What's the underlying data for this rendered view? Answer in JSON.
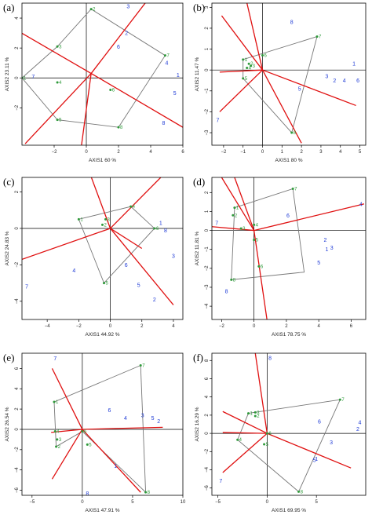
{
  "colors": {
    "hull": "#777777",
    "axes": "#e01010",
    "group_a": "#2e9a3a",
    "group_b": "#1f3bd6"
  },
  "chart_data": [
    {
      "type": "scatter",
      "panel": "(a)",
      "xlabel": "AXIS1 60 %",
      "ylabel": "AXIS2 23.11 %",
      "xlim": [
        -4,
        6
      ],
      "ylim": [
        -4.5,
        5
      ],
      "xticks": [
        -2,
        0,
        2,
        4,
        6
      ],
      "yticks": [
        -2,
        0,
        2,
        4
      ],
      "hull": [
        [
          0.3,
          4.6
        ],
        [
          4.9,
          1.5
        ],
        [
          2.0,
          -3.3
        ],
        [
          -1.8,
          -2.8
        ],
        [
          -4.0,
          0
        ],
        [
          -1.8,
          2.1
        ]
      ],
      "green_points": [
        {
          "label": "1",
          "x": -4.0,
          "y": 0
        },
        {
          "label": "2",
          "x": 0.3,
          "y": 4.6
        },
        {
          "label": "3",
          "x": -1.8,
          "y": 2.1
        },
        {
          "label": "4",
          "x": -1.8,
          "y": -0.3
        },
        {
          "label": "5",
          "x": -1.8,
          "y": -2.8
        },
        {
          "label": "6",
          "x": 1.5,
          "y": -0.8
        },
        {
          "label": "7",
          "x": 4.9,
          "y": 1.5
        },
        {
          "label": "8",
          "x": 2.0,
          "y": -3.3
        }
      ],
      "blue_points": [
        {
          "label": "1",
          "x": 5.7,
          "y": 0.2
        },
        {
          "label": "2",
          "x": 2.5,
          "y": 3.0
        },
        {
          "label": "3",
          "x": 2.6,
          "y": 4.8
        },
        {
          "label": "4",
          "x": 5.0,
          "y": 1.0
        },
        {
          "label": "5",
          "x": 5.5,
          "y": -1.0
        },
        {
          "label": "6",
          "x": 2.0,
          "y": 2.1
        },
        {
          "label": "7",
          "x": -3.3,
          "y": 0.1
        },
        {
          "label": "8",
          "x": 4.8,
          "y": -3.0
        }
      ],
      "axis_lines": [
        [
          [
            -4.5,
            3.3
          ],
          [
            0.3,
            0.3
          ]
        ],
        [
          [
            -3.8,
            -4.4
          ],
          [
            0.3,
            0.3
          ]
        ],
        [
          [
            0.3,
            0.3
          ],
          [
            3.8,
            5.2
          ]
        ],
        [
          [
            0.3,
            0.3
          ],
          [
            6.0,
            -3.3
          ]
        ],
        [
          [
            0.3,
            0.3
          ],
          [
            -0.3,
            -4.5
          ]
        ]
      ]
    },
    {
      "type": "scatter",
      "panel": "(b)",
      "xlabel": "AXIS1 80 %",
      "ylabel": "AXIS2 11.47 %",
      "xlim": [
        -2.6,
        5.3
      ],
      "ylim": [
        -3.6,
        3.2
      ],
      "xticks": [
        -2,
        -1,
        0,
        1,
        2,
        3,
        4,
        5
      ],
      "yticks": [
        -3,
        -2,
        -1,
        0,
        1,
        2,
        3
      ],
      "hull": [
        [
          2.8,
          1.6
        ],
        [
          1.5,
          -3.0
        ],
        [
          -1.0,
          -0.4
        ],
        [
          -1.0,
          0.5
        ]
      ],
      "green_points": [
        {
          "label": "1",
          "x": -1.0,
          "y": 0.5
        },
        {
          "label": "2",
          "x": -0.7,
          "y": 0.3
        },
        {
          "label": "3",
          "x": -0.6,
          "y": 0.2
        },
        {
          "label": "4",
          "x": -0.8,
          "y": 0.1
        },
        {
          "label": "5",
          "x": -1.0,
          "y": -0.4
        },
        {
          "label": "6",
          "x": 0.0,
          "y": 0.7
        },
        {
          "label": "7",
          "x": 2.8,
          "y": 1.6
        },
        {
          "label": "8",
          "x": 1.5,
          "y": -3.0
        }
      ],
      "blue_points": [
        {
          "label": "1",
          "x": 4.7,
          "y": 0.3
        },
        {
          "label": "2",
          "x": 3.7,
          "y": -0.5
        },
        {
          "label": "3",
          "x": 3.3,
          "y": -0.3
        },
        {
          "label": "4",
          "x": 4.2,
          "y": -0.5
        },
        {
          "label": "5",
          "x": 1.9,
          "y": -0.9
        },
        {
          "label": "6",
          "x": 4.9,
          "y": -0.5
        },
        {
          "label": "7",
          "x": -2.3,
          "y": -2.4
        },
        {
          "label": "8",
          "x": 1.5,
          "y": 2.3
        }
      ],
      "axis_lines": [
        [
          [
            0,
            0
          ],
          [
            -0.8,
            3.2
          ]
        ],
        [
          [
            0,
            0
          ],
          [
            -2.1,
            2.6
          ]
        ],
        [
          [
            0,
            0
          ],
          [
            -2.2,
            -0.1
          ]
        ],
        [
          [
            0,
            0
          ],
          [
            -2.2,
            -2.0
          ]
        ],
        [
          [
            0,
            0
          ],
          [
            2.0,
            -3.5
          ]
        ],
        [
          [
            0,
            0
          ],
          [
            4.8,
            -1.7
          ]
        ]
      ]
    },
    {
      "type": "scatter",
      "panel": "(c)",
      "xlabel": "AXIS1 44.92 %",
      "ylabel": "AXIS2 24.83 %",
      "xlim": [
        -5.6,
        4.6
      ],
      "ylim": [
        -5,
        2.8
      ],
      "xticks": [
        -4,
        -2,
        0,
        2,
        4
      ],
      "yticks": [
        -4,
        -2,
        0,
        2
      ],
      "hull": [
        [
          1.3,
          1.2
        ],
        [
          2.8,
          0
        ],
        [
          -0.4,
          -3.0
        ],
        [
          -2.0,
          0.5
        ]
      ],
      "green_points": [
        {
          "label": "1",
          "x": -2.0,
          "y": 0.5
        },
        {
          "label": "2",
          "x": -0.5,
          "y": 0.2
        },
        {
          "label": "3",
          "x": -0.3,
          "y": 0.5
        },
        {
          "label": "4",
          "x": 1.3,
          "y": 1.2
        },
        {
          "label": "5",
          "x": -0.4,
          "y": -3.0
        },
        {
          "label": "6",
          "x": 2.8,
          "y": 0
        }
      ],
      "blue_points": [
        {
          "label": "1",
          "x": 3.2,
          "y": 0.3
        },
        {
          "label": "2",
          "x": 2.8,
          "y": -3.9
        },
        {
          "label": "3",
          "x": 4.0,
          "y": -1.5
        },
        {
          "label": "4",
          "x": -2.3,
          "y": -2.3
        },
        {
          "label": "5",
          "x": 1.8,
          "y": -3.1
        },
        {
          "label": "6",
          "x": 1.0,
          "y": -2.0
        },
        {
          "label": "7",
          "x": -5.3,
          "y": -3.2
        },
        {
          "label": "8",
          "x": 3.5,
          "y": -0.1
        }
      ],
      "axis_lines": [
        [
          [
            0,
            0
          ],
          [
            -1.2,
            2.8
          ]
        ],
        [
          [
            0,
            0
          ],
          [
            3.2,
            2.8
          ]
        ],
        [
          [
            0,
            0
          ],
          [
            -5.6,
            -1.7
          ]
        ],
        [
          [
            0,
            0
          ],
          [
            2.0,
            -1.1
          ]
        ],
        [
          [
            0,
            0
          ],
          [
            4.0,
            -4.2
          ]
        ]
      ]
    },
    {
      "type": "scatter",
      "panel": "(d)",
      "xlabel": "AXIS1 78.75 %",
      "ylabel": "AXIS2 11.81 %",
      "xlim": [
        -2.6,
        6.9
      ],
      "ylim": [
        -4.7,
        2.8
      ],
      "xticks": [
        -2,
        0,
        2,
        4,
        6
      ],
      "yticks": [
        -4,
        -3,
        -2,
        -1,
        0,
        1,
        2
      ],
      "hull": [
        [
          2.4,
          2.2
        ],
        [
          3.1,
          -2.2
        ],
        [
          -1.4,
          -2.6
        ],
        [
          -1.2,
          1.2
        ]
      ],
      "green_points": [
        {
          "label": "1",
          "x": -1.2,
          "y": 1.2
        },
        {
          "label": "2",
          "x": -1.3,
          "y": 0.8
        },
        {
          "label": "3",
          "x": -0.8,
          "y": 0.1
        },
        {
          "label": "4",
          "x": 0.0,
          "y": 0.3
        },
        {
          "label": "5",
          "x": 0.0,
          "y": -0.5
        },
        {
          "label": "6",
          "x": 0.3,
          "y": -1.9
        },
        {
          "label": "7",
          "x": 2.4,
          "y": 2.2
        },
        {
          "label": "8",
          "x": -1.4,
          "y": -2.6
        }
      ],
      "blue_points": [
        {
          "label": "1",
          "x": 4.5,
          "y": -1.0
        },
        {
          "label": "2",
          "x": 4.4,
          "y": -0.5
        },
        {
          "label": "3",
          "x": 4.8,
          "y": -0.9
        },
        {
          "label": "4",
          "x": 6.6,
          "y": 1.4
        },
        {
          "label": "5",
          "x": 4.0,
          "y": -1.7
        },
        {
          "label": "6",
          "x": 2.1,
          "y": 0.8
        },
        {
          "label": "7",
          "x": -2.3,
          "y": 0.4
        },
        {
          "label": "8",
          "x": -1.7,
          "y": -3.2
        }
      ],
      "axis_lines": [
        [
          [
            0,
            0
          ],
          [
            -1.2,
            2.8
          ]
        ],
        [
          [
            0,
            0
          ],
          [
            -2.0,
            2.8
          ]
        ],
        [
          [
            0,
            0
          ],
          [
            -2.6,
            0.2
          ]
        ],
        [
          [
            0,
            0
          ],
          [
            6.8,
            1.4
          ]
        ],
        [
          [
            0,
            0
          ],
          [
            0.8,
            -4.7
          ]
        ]
      ]
    },
    {
      "type": "scatter",
      "panel": "(e)",
      "xlabel": "AXIS1 47.91 %",
      "ylabel": "AXIS2 26.54 %",
      "xlim": [
        -6,
        10
      ],
      "ylim": [
        -6.5,
        7.5
      ],
      "xticks": [
        -5,
        0,
        5,
        10
      ],
      "yticks": [
        -6,
        -4,
        -2,
        0,
        2,
        4,
        6
      ],
      "hull": [
        [
          5.8,
          6.3
        ],
        [
          6.3,
          -6.2
        ],
        [
          0,
          -0.2
        ],
        [
          -2.6,
          -1.7
        ],
        [
          -2.8,
          2.7
        ]
      ],
      "green_points": [
        {
          "label": "1",
          "x": -2.8,
          "y": 2.7
        },
        {
          "label": "2",
          "x": -2.6,
          "y": -1.7
        },
        {
          "label": "3",
          "x": -2.5,
          "y": -1.0
        },
        {
          "label": "4",
          "x": -2.7,
          "y": -0.2
        },
        {
          "label": "5",
          "x": 0.5,
          "y": -1.5
        },
        {
          "label": "6",
          "x": 0,
          "y": -0.2
        },
        {
          "label": "7",
          "x": 5.8,
          "y": 6.3
        },
        {
          "label": "8",
          "x": 6.3,
          "y": -6.2
        }
      ],
      "blue_points": [
        {
          "label": "1",
          "x": 3.3,
          "y": -3.6
        },
        {
          "label": "2",
          "x": 7.6,
          "y": 0.8
        },
        {
          "label": "3",
          "x": 6.0,
          "y": 1.4
        },
        {
          "label": "4",
          "x": 4.3,
          "y": 1.1
        },
        {
          "label": "5",
          "x": 7.0,
          "y": 1.1
        },
        {
          "label": "6",
          "x": 2.7,
          "y": 1.9
        },
        {
          "label": "7",
          "x": -2.7,
          "y": 7.0
        },
        {
          "label": "8",
          "x": 0.5,
          "y": -6.3
        }
      ],
      "axis_lines": [
        [
          [
            0,
            0
          ],
          [
            -3.0,
            6.0
          ]
        ],
        [
          [
            0,
            0
          ],
          [
            -3.0,
            -4.9
          ]
        ],
        [
          [
            0,
            0
          ],
          [
            -3.1,
            -0.3
          ]
        ],
        [
          [
            0,
            0
          ],
          [
            8.0,
            0.2
          ]
        ],
        [
          [
            0,
            0
          ],
          [
            5.8,
            -6.2
          ]
        ]
      ]
    },
    {
      "type": "scatter",
      "panel": "(f)",
      "xlabel": "AXIS1 69.95 %",
      "ylabel": "AXIS2 16.29 %",
      "xlim": [
        -5.6,
        10
      ],
      "ylim": [
        -6.8,
        8.8
      ],
      "xticks": [
        -5,
        0,
        5
      ],
      "yticks": [
        -6,
        -4,
        -2,
        0,
        2,
        4,
        6,
        8
      ],
      "hull": [
        [
          7.4,
          3.7
        ],
        [
          3.2,
          -6.4
        ],
        [
          -3.0,
          -0.7
        ],
        [
          -1.9,
          2.2
        ]
      ],
      "green_points": [
        {
          "label": "1",
          "x": -1.9,
          "y": 2.2
        },
        {
          "label": "2",
          "x": -1.2,
          "y": 1.9
        },
        {
          "label": "3",
          "x": -1.2,
          "y": 2.3
        },
        {
          "label": "4",
          "x": -3.0,
          "y": -0.7
        },
        {
          "label": "5",
          "x": -0.3,
          "y": -1.2
        },
        {
          "label": "6",
          "x": 0,
          "y": 0
        },
        {
          "label": "7",
          "x": 7.4,
          "y": 3.7
        },
        {
          "label": "8",
          "x": 3.2,
          "y": -6.4
        }
      ],
      "blue_points": [
        {
          "label": "1",
          "x": 5.0,
          "y": -2.8
        },
        {
          "label": "2",
          "x": 9.2,
          "y": 0.5
        },
        {
          "label": "3",
          "x": 6.5,
          "y": -1.0
        },
        {
          "label": "4",
          "x": 9.4,
          "y": 1.2
        },
        {
          "label": "5",
          "x": 4.8,
          "y": -2.9
        },
        {
          "label": "6",
          "x": 5.3,
          "y": 1.3
        },
        {
          "label": "7",
          "x": -4.7,
          "y": -5.2
        },
        {
          "label": "8",
          "x": 0.3,
          "y": 8.3
        }
      ],
      "axis_lines": [
        [
          [
            0,
            0
          ],
          [
            -1.2,
            8.8
          ]
        ],
        [
          [
            0,
            0
          ],
          [
            -4.5,
            2.4
          ]
        ],
        [
          [
            0,
            0
          ],
          [
            -4.5,
            0.1
          ]
        ],
        [
          [
            0,
            0
          ],
          [
            -4.5,
            -4.3
          ]
        ],
        [
          [
            0,
            0
          ],
          [
            8.5,
            -3.8
          ]
        ]
      ]
    }
  ]
}
